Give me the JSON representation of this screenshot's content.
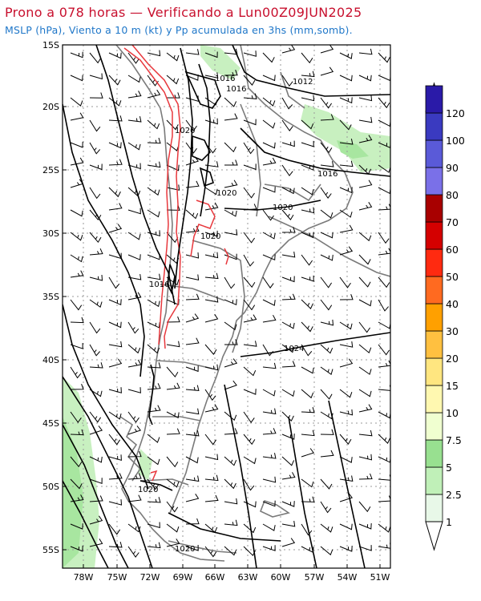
{
  "title": {
    "line1": "Prono a 078 horas — Verificando a Lun00Z09JUN2025",
    "line1_color": "#c8102e",
    "line2": "MSLP (hPa), Viento a 10 m (kt) y Pp acumulada en 3hs (mm,somb).",
    "line2_color": "#1f77c9"
  },
  "map": {
    "lat_labels": [
      "15S",
      "20S",
      "25S",
      "30S",
      "35S",
      "40S",
      "45S",
      "50S",
      "55S"
    ],
    "lon_labels": [
      "78W",
      "75W",
      "72W",
      "69W",
      "66W",
      "63W",
      "60W",
      "57W",
      "54W",
      "51W"
    ],
    "isobar_labels": [
      "1012",
      "1016",
      "1016",
      "1020",
      "1016",
      "1020",
      "1020",
      "1020",
      "1016",
      "1024",
      "1020",
      "1020"
    ],
    "colors": {
      "coast": "#7a7a7a",
      "isobar": "#000000",
      "red_contour": "#e8383d",
      "precip_light": "#c8f0c0",
      "precip_mid": "#98e090"
    }
  },
  "colorbar": {
    "labels": [
      "1",
      "2.5",
      "5",
      "7.5",
      "10",
      "15",
      "20",
      "30",
      "40",
      "50",
      "60",
      "70",
      "80",
      "90",
      "100",
      "120"
    ],
    "colors": [
      "#e8f8e8",
      "#c0f0b8",
      "#98e090",
      "#f0ffd0",
      "#fff8b0",
      "#ffe680",
      "#ffc040",
      "#ffa000",
      "#ff6a20",
      "#ff2a10",
      "#d40000",
      "#a80000",
      "#7a70e8",
      "#5a5ad8",
      "#3a3ac0",
      "#2a1aa8"
    ],
    "top_arrow_color": "#1a1a8a"
  }
}
